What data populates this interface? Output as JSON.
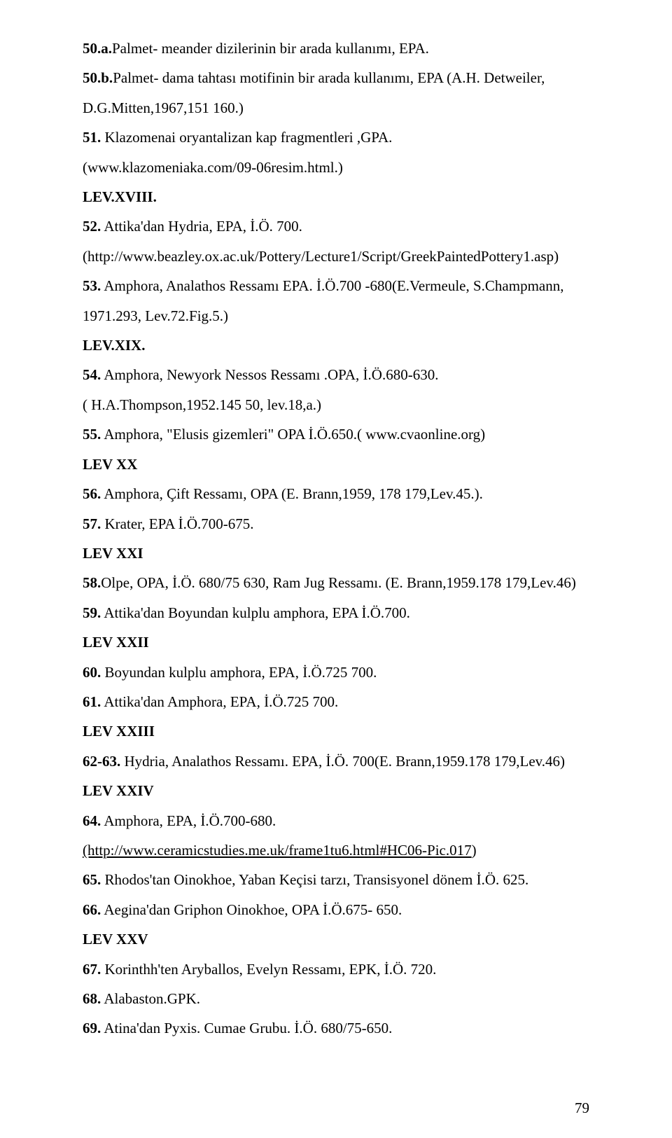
{
  "colors": {
    "text": "#000000",
    "bg": "#ffffff"
  },
  "font": {
    "family": "Times New Roman",
    "size_pt": 16,
    "line_height": 2.02
  },
  "page_number": "79",
  "lines": [
    {
      "runs": [
        {
          "t": "50.a.",
          "b": true
        },
        {
          "t": "Palmet- meander dizilerinin bir arada kullanımı, EPA."
        }
      ]
    },
    {
      "runs": [
        {
          "t": "50.b.",
          "b": true
        },
        {
          "t": "Palmet- dama tahtası motifinin bir arada kullanımı, EPA (A.H. Detweiler,"
        }
      ]
    },
    {
      "runs": [
        {
          "t": "D.G.Mitten,1967,151 160.)"
        }
      ]
    },
    {
      "runs": [
        {
          "t": "51.",
          "b": true
        },
        {
          "t": " Klazomenai oryantalizan kap fragmentleri ,GPA."
        }
      ]
    },
    {
      "runs": [
        {
          "t": "(www.klazomeniaka.com/09-06resim.html.)"
        }
      ]
    },
    {
      "runs": [
        {
          "t": "LEV.XVIII.",
          "b": true
        }
      ]
    },
    {
      "runs": [
        {
          "t": "52.",
          "b": true
        },
        {
          "t": " Attika'dan Hydria, EPA, İ.Ö. 700."
        }
      ]
    },
    {
      "runs": [
        {
          "t": "(http://www.beazley.ox.ac.uk/Pottery/Lecture1/Script/GreekPaintedPottery1.asp)"
        }
      ]
    },
    {
      "runs": [
        {
          "t": "53.",
          "b": true
        },
        {
          "t": " Amphora, Analathos Ressamı EPA. İ.Ö.700 -680(E.Vermeule, S.Champmann,"
        }
      ]
    },
    {
      "runs": [
        {
          "t": "1971.293, Lev.72.Fig.5.)"
        }
      ]
    },
    {
      "runs": [
        {
          "t": "LEV.XIX.",
          "b": true
        }
      ]
    },
    {
      "runs": [
        {
          "t": "54.",
          "b": true
        },
        {
          "t": " Amphora, Newyork Nessos Ressamı .OPA, İ.Ö.680-630."
        }
      ]
    },
    {
      "runs": [
        {
          "t": "( H.A.Thompson,1952.145 50, lev.18,a.)"
        }
      ]
    },
    {
      "runs": [
        {
          "t": "55.",
          "b": true
        },
        {
          "t": " Amphora, \"Elusis gizemleri\" OPA İ.Ö.650.( www.cvaonline.org)"
        }
      ]
    },
    {
      "runs": [
        {
          "t": "LEV XX",
          "b": true
        }
      ]
    },
    {
      "runs": [
        {
          "t": "56.",
          "b": true
        },
        {
          "t": " Amphora, Çift Ressamı, OPA (E. Brann,1959, 178 179,Lev.45.)."
        }
      ]
    },
    {
      "runs": [
        {
          "t": "57.",
          "b": true
        },
        {
          "t": " Krater, EPA İ.Ö.700-675."
        }
      ]
    },
    {
      "runs": [
        {
          "t": "LEV XXI",
          "b": true
        }
      ]
    },
    {
      "runs": [
        {
          "t": "58.",
          "b": true
        },
        {
          "t": "Olpe, OPA, İ.Ö. 680/75 630, Ram Jug Ressamı. (E. Brann,1959.178 179,Lev.46)"
        }
      ]
    },
    {
      "runs": [
        {
          "t": "59.",
          "b": true
        },
        {
          "t": "  Attika'dan Boyundan kulplu amphora, EPA İ.Ö.700."
        }
      ]
    },
    {
      "runs": [
        {
          "t": "LEV XXII",
          "b": true
        }
      ]
    },
    {
      "runs": [
        {
          "t": "60.",
          "b": true
        },
        {
          "t": " Boyundan kulplu amphora, EPA, İ.Ö.725 700."
        }
      ]
    },
    {
      "runs": [
        {
          "t": "61.",
          "b": true
        },
        {
          "t": " Attika'dan Amphora, EPA, İ.Ö.725 700."
        }
      ]
    },
    {
      "runs": [
        {
          "t": "LEV XXIII",
          "b": true
        }
      ]
    },
    {
      "runs": [
        {
          "t": "62-63.",
          "b": true
        },
        {
          "t": " Hydria, Analathos Ressamı. EPA, İ.Ö. 700(E. Brann,1959.178 179,Lev.46)"
        }
      ]
    },
    {
      "runs": [
        {
          "t": "LEV XXIV",
          "b": true
        }
      ]
    },
    {
      "runs": [
        {
          "t": "64.",
          "b": true
        },
        {
          "t": " Amphora, EPA, İ.Ö.700-680."
        }
      ]
    },
    {
      "runs": [
        {
          "t": "(http://www.ceramicstudies.me.uk/frame1tu6.html#HC06-Pic.017",
          "u": true
        },
        {
          "t": ")"
        }
      ]
    },
    {
      "runs": [
        {
          "t": "65.",
          "b": true
        },
        {
          "t": " Rhodos'tan Oinokhoe, Yaban Keçisi tarzı, Transisyonel dönem İ.Ö. 625."
        }
      ]
    },
    {
      "runs": [
        {
          "t": "66.",
          "b": true
        },
        {
          "t": " Aegina'dan Griphon Oinokhoe, OPA İ.Ö.675- 650."
        }
      ]
    },
    {
      "runs": [
        {
          "t": "LEV XXV",
          "b": true
        }
      ]
    },
    {
      "runs": [
        {
          "t": "67.",
          "b": true
        },
        {
          "t": "  Korinthh'ten Aryballos, Evelyn Ressamı, EPK, İ.Ö. 720."
        }
      ]
    },
    {
      "runs": [
        {
          "t": "68.",
          "b": true
        },
        {
          "t": " Alabaston.GPK."
        }
      ]
    },
    {
      "runs": [
        {
          "t": "69.",
          "b": true
        },
        {
          "t": " Atina'dan Pyxis. Cumae Grubu. İ.Ö. 680/75-650."
        }
      ]
    }
  ]
}
